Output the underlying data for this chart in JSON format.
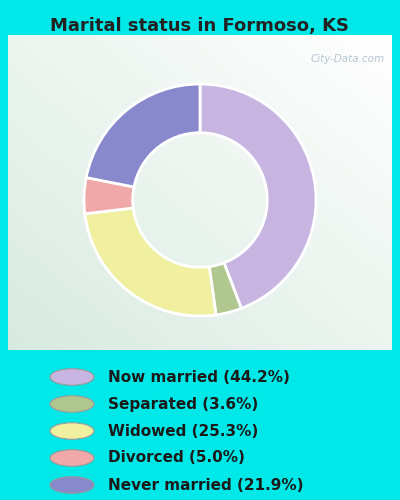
{
  "title": "Marital status in Formoso, KS",
  "slices": [
    44.2,
    3.6,
    25.3,
    5.0,
    21.9
  ],
  "labels": [
    "Now married (44.2%)",
    "Separated (3.6%)",
    "Widowed (25.3%)",
    "Divorced (5.0%)",
    "Never married (21.9%)"
  ],
  "colors": [
    "#c8b4e0",
    "#b0c890",
    "#f0f0a0",
    "#f0a8a8",
    "#8888cc"
  ],
  "cyan_bg": "#00e8e8",
  "chart_bg_color": "#d8ede0",
  "title_fontsize": 13,
  "legend_fontsize": 11,
  "watermark": "City-Data.com",
  "donut_order": [
    0,
    1,
    2,
    3,
    4
  ],
  "start_angle": 90
}
